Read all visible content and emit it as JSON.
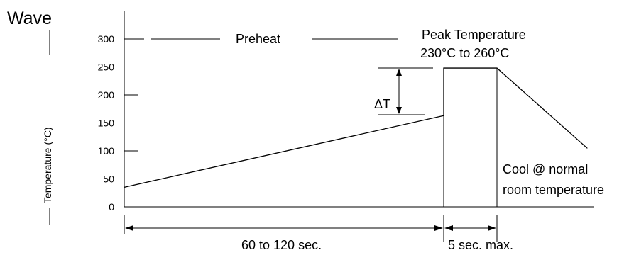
{
  "chart_data": {
    "type": "line",
    "title": "Wave",
    "ylabel": "Temperature (°C)",
    "xlabel": "",
    "ylim": [
      0,
      300
    ],
    "yticks": [
      0,
      50,
      100,
      150,
      200,
      250,
      300
    ],
    "yticks_labels": [
      "0",
      "50",
      "100",
      "150",
      "200",
      "250",
      "300"
    ],
    "grid": false,
    "series": [
      {
        "values": [
          {
            "x": 0,
            "y": 35
          },
          {
            "x": 120,
            "y": 163
          },
          {
            "x": 120,
            "y": 248
          },
          {
            "x": 125,
            "y": 248
          },
          {
            "x": 155,
            "y": 105
          }
        ]
      }
    ],
    "annotations": {
      "preheat": "Preheat",
      "peak_line1": "Peak Temperature",
      "peak_line2": "230°C to 260°C",
      "delta_t": "ΔT",
      "cool_line1": "Cool @ normal",
      "cool_line2": "room temperature",
      "duration_preheat": "60 to 120 sec.",
      "duration_peak": "5 sec. max."
    }
  }
}
